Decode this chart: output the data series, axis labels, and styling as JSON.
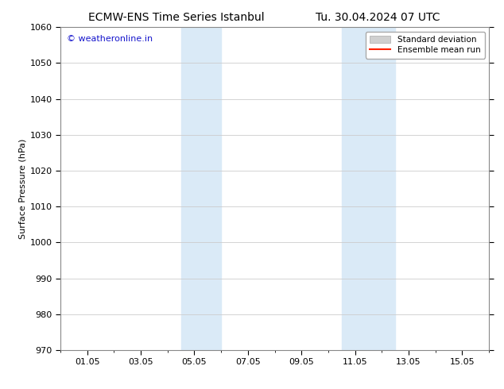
{
  "title_left": "ECMW-ENS Time Series Istanbul",
  "title_right": "Tu. 30.04.2024 07 UTC",
  "ylabel": "Surface Pressure (hPa)",
  "ylim": [
    970,
    1060
  ],
  "yticks": [
    970,
    980,
    990,
    1000,
    1010,
    1020,
    1030,
    1040,
    1050,
    1060
  ],
  "xtick_labels": [
    "01.05",
    "03.05",
    "05.05",
    "07.05",
    "09.05",
    "11.05",
    "13.05",
    "15.05"
  ],
  "xtick_positions": [
    1,
    3,
    5,
    7,
    9,
    11,
    13,
    15
  ],
  "xlim": [
    0,
    16
  ],
  "shaded_bands": [
    {
      "x_start": 4.5,
      "x_end": 6.0
    },
    {
      "x_start": 10.5,
      "x_end": 12.5
    }
  ],
  "shaded_color": "#daeaf7",
  "watermark": "© weatheronline.in",
  "watermark_color": "#1515cc",
  "legend_items": [
    {
      "label": "Standard deviation",
      "color": "#d0d0d0",
      "type": "band"
    },
    {
      "label": "Ensemble mean run",
      "color": "#ff2200",
      "type": "line"
    }
  ],
  "background_color": "#ffffff",
  "grid_color": "#cccccc",
  "spine_color": "#888888",
  "title_fontsize": 10,
  "axis_label_fontsize": 8,
  "tick_fontsize": 8,
  "watermark_fontsize": 8,
  "legend_fontsize": 7.5
}
